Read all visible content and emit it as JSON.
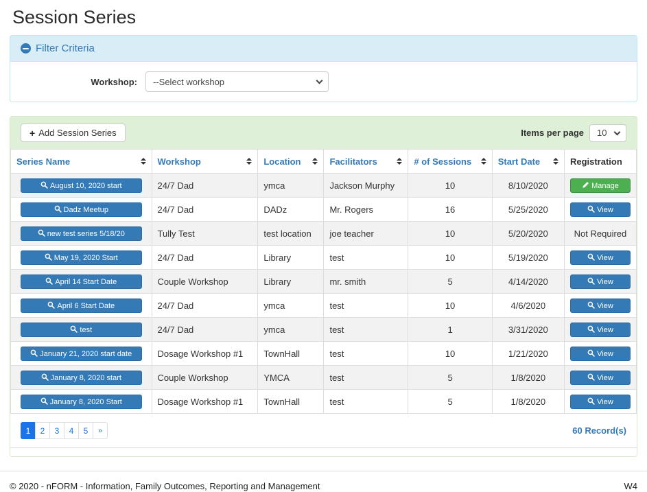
{
  "page_title": "Session Series",
  "filter": {
    "title": "Filter Criteria",
    "workshop_label": "Workshop:",
    "workshop_selected": "--Select workshop"
  },
  "toolbar": {
    "add_button": "Add Session Series",
    "items_per_page_label": "Items per page",
    "items_per_page_value": "10"
  },
  "table": {
    "columns": [
      {
        "label": "Series Name",
        "sortable": true,
        "align": "left"
      },
      {
        "label": "Workshop",
        "sortable": true,
        "align": "left"
      },
      {
        "label": "Location",
        "sortable": true,
        "align": "left"
      },
      {
        "label": "Facilitators",
        "sortable": true,
        "align": "left"
      },
      {
        "label": "# of Sessions",
        "sortable": true,
        "align": "center"
      },
      {
        "label": "Start Date",
        "sortable": true,
        "align": "center"
      },
      {
        "label": "Registration",
        "sortable": false,
        "align": "center"
      }
    ],
    "rows": [
      {
        "series_name": "August 10, 2020 start",
        "workshop": "24/7 Dad",
        "location": "ymca",
        "facilitators": "Jackson Murphy",
        "sessions": "10",
        "start_date": "8/10/2020",
        "registration": {
          "type": "manage",
          "label": "Manage"
        }
      },
      {
        "series_name": "Dadz Meetup",
        "workshop": "24/7 Dad",
        "location": "DADz",
        "facilitators": "Mr. Rogers",
        "sessions": "16",
        "start_date": "5/25/2020",
        "registration": {
          "type": "view",
          "label": "View"
        }
      },
      {
        "series_name": "new test series 5/18/20",
        "workshop": "Tully Test",
        "location": "test location",
        "facilitators": "joe teacher",
        "sessions": "10",
        "start_date": "5/20/2020",
        "registration": {
          "type": "text",
          "label": "Not Required"
        }
      },
      {
        "series_name": "May 19, 2020 Start",
        "workshop": "24/7 Dad",
        "location": "Library",
        "facilitators": "test",
        "sessions": "10",
        "start_date": "5/19/2020",
        "registration": {
          "type": "view",
          "label": "View"
        }
      },
      {
        "series_name": "April 14 Start Date",
        "workshop": "Couple Workshop",
        "location": "Library",
        "facilitators": "mr. smith",
        "sessions": "5",
        "start_date": "4/14/2020",
        "registration": {
          "type": "view",
          "label": "View"
        }
      },
      {
        "series_name": "April 6 Start Date",
        "workshop": "24/7 Dad",
        "location": "ymca",
        "facilitators": "test",
        "sessions": "10",
        "start_date": "4/6/2020",
        "registration": {
          "type": "view",
          "label": "View"
        }
      },
      {
        "series_name": "test",
        "workshop": "24/7 Dad",
        "location": "ymca",
        "facilitators": "test",
        "sessions": "1",
        "start_date": "3/31/2020",
        "registration": {
          "type": "view",
          "label": "View"
        }
      },
      {
        "series_name": "January 21, 2020 start date",
        "workshop": "Dosage Workshop #1",
        "location": "TownHall",
        "facilitators": "test",
        "sessions": "10",
        "start_date": "1/21/2020",
        "registration": {
          "type": "view",
          "label": "View"
        }
      },
      {
        "series_name": "January 8, 2020 start",
        "workshop": "Couple Workshop",
        "location": "YMCA",
        "facilitators": "test",
        "sessions": "5",
        "start_date": "1/8/2020",
        "registration": {
          "type": "view",
          "label": "View"
        }
      },
      {
        "series_name": "January 8, 2020 Start",
        "workshop": "Dosage Workshop #1",
        "location": "TownHall",
        "facilitators": "test",
        "sessions": "5",
        "start_date": "1/8/2020",
        "registration": {
          "type": "view",
          "label": "View"
        }
      }
    ]
  },
  "pagination": {
    "pages": [
      "1",
      "2",
      "3",
      "4",
      "5",
      "»"
    ],
    "active_index": 0,
    "record_count": "60 Record(s)"
  },
  "footer": {
    "copyright": "© 2020 - nFORM - Information, Family Outcomes, Reporting and Management",
    "version": "W4"
  },
  "colors": {
    "primary_blue": "#337ab7",
    "active_page_blue": "#1b75e8",
    "manage_green": "#4caf50",
    "filter_header_bg": "#d9edf7",
    "filter_header_border": "#bce8f1",
    "toolbar_bg": "#dff0d8",
    "toolbar_border": "#d6e9c6",
    "stripe_row": "#f2f2f2",
    "grid_border": "#dddddd"
  }
}
